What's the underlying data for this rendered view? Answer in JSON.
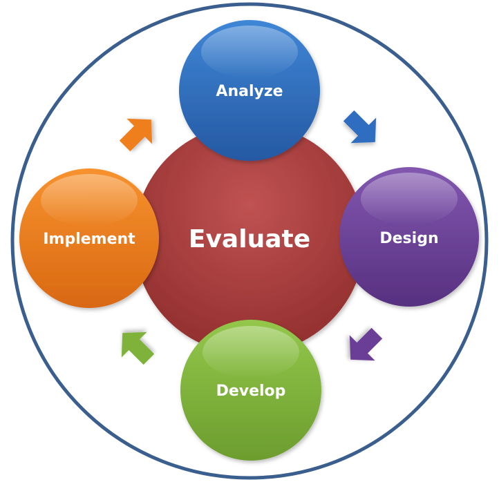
{
  "diagram": {
    "center": {
      "label": "Evaluate",
      "color": "#A33B3B"
    },
    "phases": [
      {
        "id": "analyze",
        "label": "Analyze",
        "color": "#2F6DBF"
      },
      {
        "id": "design",
        "label": "Design",
        "color": "#6A3E97"
      },
      {
        "id": "develop",
        "label": "Develop",
        "color": "#7FB23A"
      },
      {
        "id": "implement",
        "label": "Implement",
        "color": "#EE7F1F"
      }
    ],
    "ring_color": "#3A5E8E"
  }
}
